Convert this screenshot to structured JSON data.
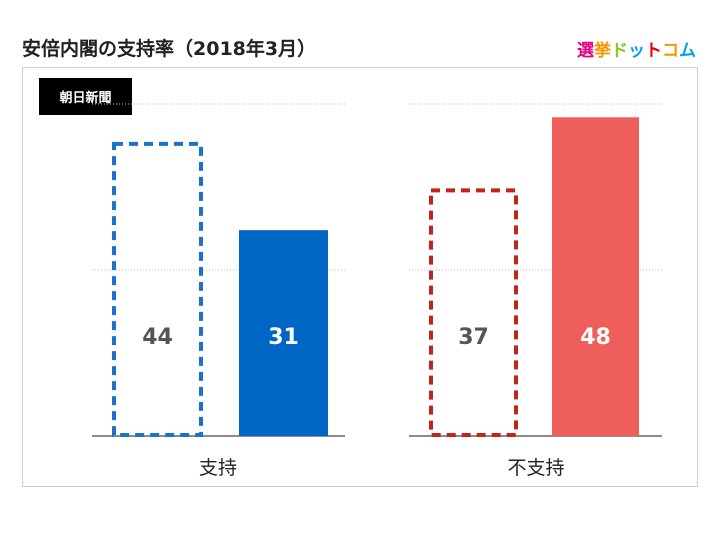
{
  "header": {
    "title": "安倍内閣の支持率（2018年3月）",
    "logo_text": [
      "選",
      "挙",
      "ド",
      "ッ",
      "ト",
      "コ",
      "ム"
    ],
    "logo_colors": [
      "#e4007f",
      "#f39800",
      "#8fc31f",
      "#00a0e9",
      "#e60012",
      "#f39800",
      "#00a0e9"
    ]
  },
  "source": {
    "label": "朝日新聞"
  },
  "chart_data": {
    "type": "bar",
    "categories": [
      "支持",
      "不支持"
    ],
    "series": [
      {
        "values": [
          44,
          37
        ],
        "style": "dashed-outline"
      },
      {
        "values": [
          31,
          48
        ],
        "style": "solid"
      }
    ],
    "ylim": [
      0,
      50
    ],
    "grid": true,
    "colors": {
      "support": "#0066c5",
      "support_dashed": "#1a73c8",
      "oppose": "#ee5f5b",
      "oppose_dashed": "#c0241c",
      "value_outline": "#555555",
      "value_solid": "#ffffff"
    }
  }
}
